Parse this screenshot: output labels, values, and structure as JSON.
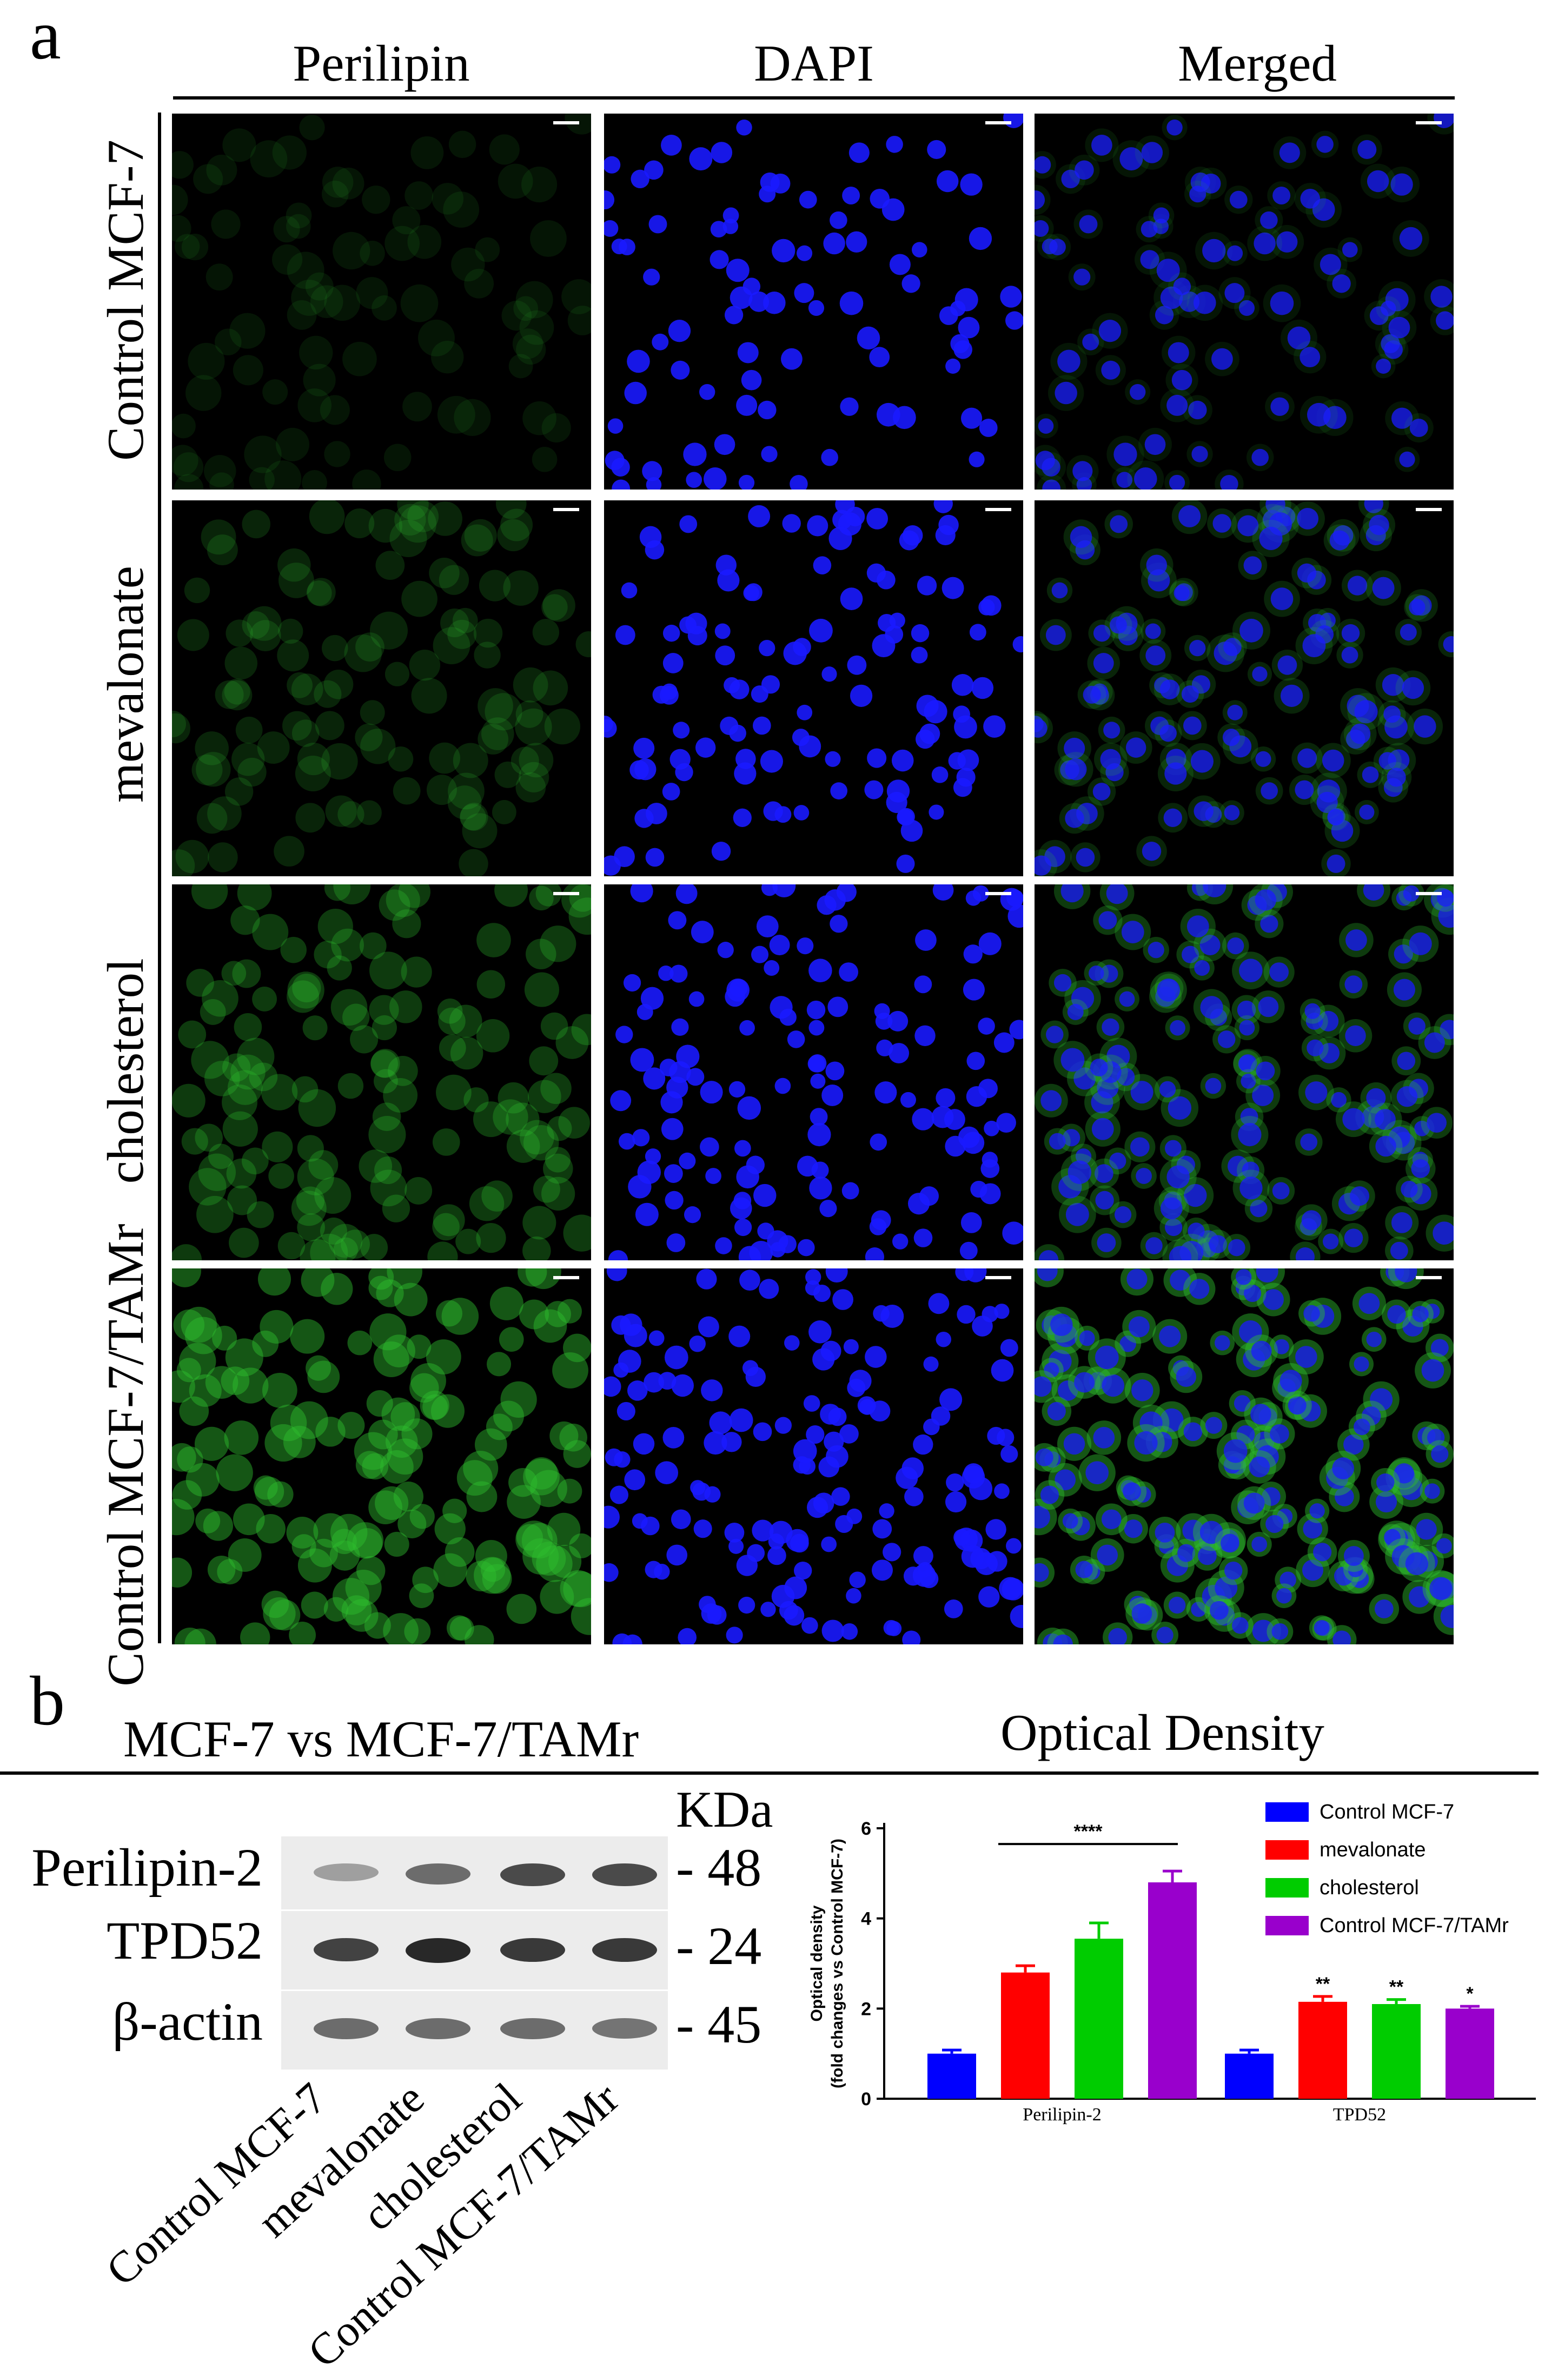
{
  "panel_a": {
    "letter": "a",
    "columns": [
      "Perilipin",
      "DAPI",
      "Merged"
    ],
    "rows": [
      {
        "label": "Control MCF-7",
        "green_intensity": 0.18
      },
      {
        "label": "mevalonate",
        "green_intensity": 0.32
      },
      {
        "label": "cholesterol",
        "green_intensity": 0.5
      },
      {
        "label": "Control MCF-7/TAMr",
        "green_intensity": 0.75
      }
    ],
    "colors": {
      "green": "#2fbf2f",
      "blue": "#1a1aff",
      "background": "#000000"
    }
  },
  "panel_b": {
    "letter": "b",
    "blot_title": "MCF-7 vs MCF-7/TAMr",
    "chart_title": "Optical Density",
    "kda_label": "KDa",
    "proteins": [
      {
        "name": "Perilipin-2",
        "mw": "- 48",
        "intensities": [
          0.3,
          0.6,
          0.8,
          0.8
        ]
      },
      {
        "name": "TPD52",
        "mw": "- 24",
        "intensities": [
          0.85,
          1.0,
          0.9,
          0.9
        ]
      },
      {
        "name": "β-actin",
        "mw": "- 45",
        "intensities": [
          0.6,
          0.6,
          0.6,
          0.55
        ]
      }
    ],
    "lanes": [
      "Control MCF-7",
      "mevalonate",
      "cholesterol",
      "Control MCF-7/TAMr"
    ]
  },
  "chart_data": {
    "type": "bar",
    "title": "",
    "ylabel_line1": "Optical density",
    "ylabel_line2": "(fold changes vs Control MCF-7)",
    "xlabel": "",
    "ylim": [
      0,
      6
    ],
    "yticks": [
      0,
      2,
      4,
      6
    ],
    "categories": [
      "Perilipin-2",
      "TPD52"
    ],
    "series": [
      {
        "name": "Control MCF-7",
        "color": "#0000ff",
        "values": [
          1.0,
          1.0
        ],
        "errors": [
          0.08,
          0.08
        ],
        "stars": [
          "",
          ""
        ]
      },
      {
        "name": "mevalonate",
        "color": "#ff0000",
        "values": [
          2.8,
          2.15
        ],
        "errors": [
          0.15,
          0.12
        ],
        "stars": [
          "",
          "**"
        ]
      },
      {
        "name": "cholesterol",
        "color": "#00cc00",
        "values": [
          3.55,
          2.1
        ],
        "errors": [
          0.35,
          0.1
        ],
        "stars": [
          "",
          "**"
        ]
      },
      {
        "name": "Control MCF-7/TAMr",
        "color": "#9900cc",
        "values": [
          4.8,
          2.0
        ],
        "errors": [
          0.25,
          0.05
        ],
        "stars": [
          "",
          "*"
        ]
      }
    ],
    "bracket": {
      "label": "****",
      "category": "Perilipin-2",
      "from_series": 1,
      "to_series": 3,
      "y": 5.65
    },
    "legend_position": "top-right"
  }
}
